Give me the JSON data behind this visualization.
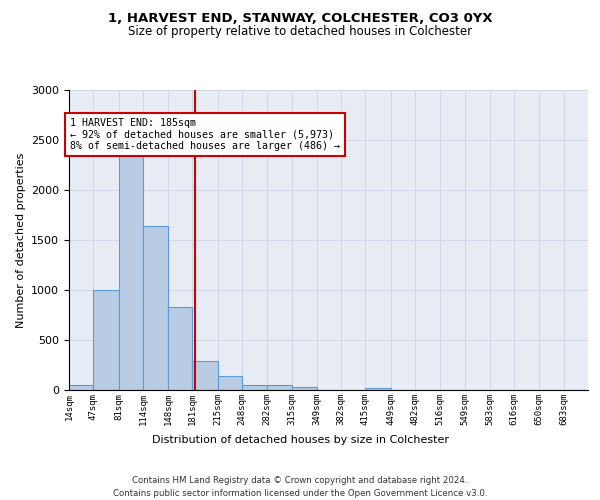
{
  "title1": "1, HARVEST END, STANWAY, COLCHESTER, CO3 0YX",
  "title2": "Size of property relative to detached houses in Colchester",
  "xlabel": "Distribution of detached houses by size in Colchester",
  "ylabel": "Number of detached properties",
  "categories": [
    "14sqm",
    "47sqm",
    "81sqm",
    "114sqm",
    "148sqm",
    "181sqm",
    "215sqm",
    "248sqm",
    "282sqm",
    "315sqm",
    "349sqm",
    "382sqm",
    "415sqm",
    "449sqm",
    "482sqm",
    "516sqm",
    "549sqm",
    "583sqm",
    "616sqm",
    "650sqm",
    "683sqm"
  ],
  "values": [
    55,
    1000,
    2450,
    1640,
    830,
    290,
    145,
    50,
    50,
    30,
    0,
    0,
    20,
    0,
    0,
    0,
    0,
    0,
    0,
    0,
    0
  ],
  "bar_color": "#b8cce4",
  "bar_edge_color": "#5b9bd5",
  "bin_edges": [
    14,
    47,
    81,
    114,
    148,
    181,
    215,
    248,
    282,
    315,
    349,
    382,
    415,
    449,
    482,
    516,
    549,
    583,
    616,
    650,
    683,
    716
  ],
  "annotation_text": "1 HARVEST END: 185sqm\n← 92% of detached houses are smaller (5,973)\n8% of semi-detached houses are larger (486) →",
  "annotation_box_color": "#ffffff",
  "annotation_box_edge_color": "#cc0000",
  "vline_color": "#cc0000",
  "grid_color": "#d0d8e8",
  "background_color": "#e8edf5",
  "footer_text": "Contains HM Land Registry data © Crown copyright and database right 2024.\nContains public sector information licensed under the Open Government Licence v3.0.",
  "ylim": [
    0,
    3000
  ],
  "yticks": [
    0,
    500,
    1000,
    1500,
    2000,
    2500,
    3000
  ],
  "property_sqm": 185
}
